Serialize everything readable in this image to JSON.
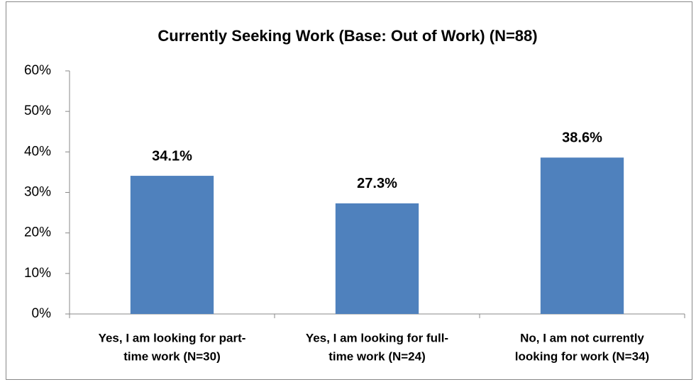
{
  "chart_data": {
    "type": "bar",
    "title": "Currently Seeking Work (Base: Out of Work) (N=88)",
    "categories": [
      [
        "Yes, I am looking for part-",
        "time work (N=30)"
      ],
      [
        "Yes, I am looking for full-",
        "time work (N=24)"
      ],
      [
        "No, I am not currently",
        "looking for work (N=34)"
      ]
    ],
    "values": [
      34.1,
      27.3,
      38.6
    ],
    "value_labels": [
      "34.1%",
      "27.3%",
      "38.6%"
    ],
    "color": "#4f81bd",
    "ylim": [
      0,
      60
    ],
    "yticks": [
      {
        "value": 0,
        "label": "0%"
      },
      {
        "value": 10,
        "label": "10%"
      },
      {
        "value": 20,
        "label": "20%"
      },
      {
        "value": 30,
        "label": "30%"
      },
      {
        "value": 40,
        "label": "40%"
      },
      {
        "value": 50,
        "label": "50%"
      },
      {
        "value": 60,
        "label": "60%"
      }
    ],
    "grid": false
  }
}
